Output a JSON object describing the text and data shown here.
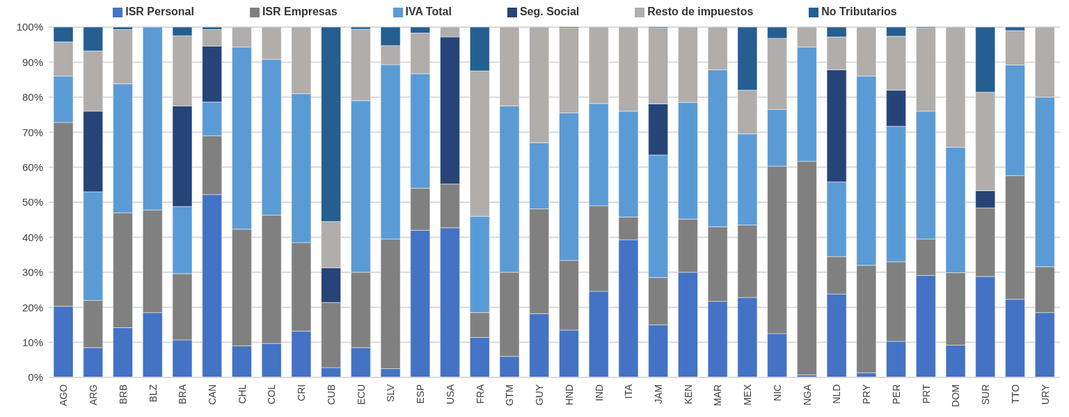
{
  "chart_data": {
    "type": "bar",
    "stacked": true,
    "categories": [
      "AGO",
      "ARG",
      "BRB",
      "BLZ",
      "BRA",
      "CAN",
      "CHL",
      "COL",
      "CRI",
      "CUB",
      "ECU",
      "SLV",
      "ESP",
      "USA",
      "FRA",
      "GTM",
      "GUY",
      "HND",
      "IND",
      "ITA",
      "JAM",
      "KEN",
      "MAR",
      "MEX",
      "NIC",
      "NGA",
      "NLD",
      "PRY",
      "PER",
      "PRT",
      "DOM",
      "SUR",
      "TTO",
      "URY"
    ],
    "series": [
      {
        "name": "ISR Personal",
        "color": "#4472c4",
        "values": [
          20.3,
          8.5,
          14.2,
          18.5,
          10.7,
          52.2,
          9,
          9.7,
          13.2,
          2.8,
          8.5,
          2.5,
          42,
          42.7,
          11.4,
          6,
          18.2,
          13.5,
          24.6,
          39.3,
          15,
          30,
          21.7,
          22.8,
          12.5,
          0.7,
          23.8,
          1.3,
          10.3,
          29.1,
          9.2,
          28.8,
          22.3,
          18.5
        ]
      },
      {
        "name": "ISR Empresas",
        "color": "#808080",
        "values": [
          52.5,
          13.5,
          32.8,
          29.3,
          18.9,
          16.8,
          33.3,
          36.6,
          25.3,
          18.6,
          21.5,
          37,
          12,
          12.5,
          7.1,
          24,
          29.9,
          19.9,
          24.4,
          6.5,
          13.5,
          15.2,
          21.3,
          20.7,
          47.8,
          61,
          10.7,
          30.7,
          22.7,
          10.4,
          20.7,
          19.6,
          35.3,
          13.1
        ]
      },
      {
        "name": "IVA Total",
        "color": "#5b9bd5",
        "values": [
          13.2,
          31,
          36.8,
          52.2,
          19.2,
          9.6,
          52,
          44.5,
          42.5,
          0,
          49,
          49.8,
          32.7,
          0,
          27.5,
          47.5,
          18.9,
          42.1,
          29.2,
          30.2,
          35,
          33.3,
          44.8,
          26,
          16.2,
          32.6,
          21.3,
          54,
          38.7,
          36.5,
          35.8,
          0,
          31.6,
          48.4
        ]
      },
      {
        "name": "Seg. Social",
        "color": "#264478",
        "values": [
          0,
          23,
          0,
          0,
          28.7,
          16,
          0,
          0,
          0,
          9.9,
          0,
          0,
          0,
          42,
          0,
          0,
          0,
          0,
          0,
          0,
          14.6,
          0,
          0,
          0,
          0,
          0,
          32,
          0,
          10.3,
          0,
          0,
          4.9,
          0,
          0
        ]
      },
      {
        "name": "Resto de impuestos",
        "color": "#b0adab",
        "values": [
          9.8,
          17.2,
          15.5,
          0,
          20,
          4.7,
          5.7,
          9.2,
          19,
          13.2,
          20.4,
          5.4,
          11.6,
          2.8,
          41.5,
          22.5,
          33,
          24.2,
          21.8,
          24,
          21.6,
          21.5,
          12.2,
          12.5,
          20.3,
          5.7,
          9.4,
          14,
          15.4,
          23.7,
          34.3,
          28.1,
          9.8,
          20
        ]
      },
      {
        "name": "No Tributarios",
        "color": "#255e91",
        "values": [
          4.2,
          6.8,
          0.7,
          0,
          2.5,
          0.7,
          0,
          0,
          0,
          55.5,
          0.6,
          5.3,
          1.7,
          0,
          12.5,
          0,
          0,
          0.3,
          0,
          0,
          0.3,
          0,
          0,
          18,
          3.2,
          0,
          2.8,
          0,
          2.6,
          0.3,
          0,
          18.6,
          1,
          0
        ]
      }
    ],
    "ylim": [
      0,
      100
    ],
    "yticks": [
      {
        "value": 0,
        "label": "0%"
      },
      {
        "value": 10,
        "label": "10%"
      },
      {
        "value": 20,
        "label": "20%"
      },
      {
        "value": 30,
        "label": "30%"
      },
      {
        "value": 40,
        "label": "40%"
      },
      {
        "value": 50,
        "label": "50%"
      },
      {
        "value": 60,
        "label": "60%"
      },
      {
        "value": 70,
        "label": "70%"
      },
      {
        "value": 80,
        "label": "80%"
      },
      {
        "value": 90,
        "label": "90%"
      },
      {
        "value": 100,
        "label": "100%"
      }
    ],
    "grid": "y",
    "legend": "top"
  }
}
